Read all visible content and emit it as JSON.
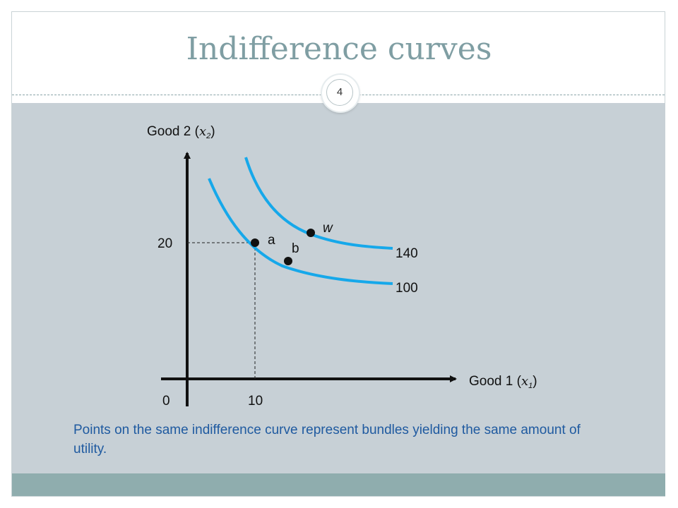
{
  "slide": {
    "title": "Indifference curves",
    "page_number": "4",
    "caption": "Points on the same indifference curve represent bundles yielding the same amount of utility."
  },
  "diagram": {
    "y_axis_label": "Good 2 (",
    "y_axis_var": "x",
    "y_axis_sub": "2",
    "y_axis_close": ")",
    "x_axis_label": "Good 1 (",
    "x_axis_var": "x",
    "x_axis_sub": "1",
    "x_axis_close": ")",
    "origin_label": "0",
    "x_tick_label": "10",
    "y_tick_label": "20",
    "curves": [
      {
        "label": "100",
        "color": "#16a8ea"
      },
      {
        "label": "140",
        "color": "#16a8ea"
      }
    ],
    "points": [
      {
        "label": "a"
      },
      {
        "label": "b"
      },
      {
        "label": "w"
      }
    ]
  },
  "colors": {
    "title": "#7f9ea3",
    "panel": "#c7d0d6",
    "footer": "#8fadae",
    "curve": "#16a8ea",
    "caption": "#1f5aa0"
  }
}
